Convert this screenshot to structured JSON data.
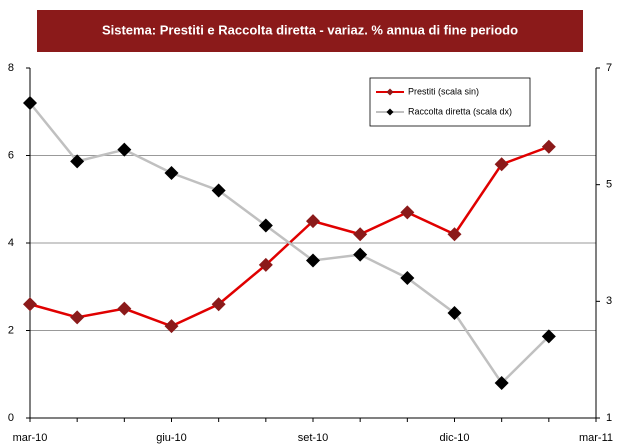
{
  "chart_data": {
    "type": "line",
    "title": "Sistema: Prestiti e Raccolta diretta - variaz. % annua di fine periodo",
    "categories": [
      "mar-10",
      null,
      null,
      "giu-10",
      null,
      null,
      "set-10",
      null,
      null,
      "dic-10",
      null,
      null,
      "mar-11"
    ],
    "series": [
      {
        "name": "Prestiti (scala sin)",
        "color": "#e00000",
        "marker_color": "#8b1a1a",
        "axis": "y",
        "values": [
          2.6,
          2.3,
          2.5,
          2.1,
          2.6,
          3.5,
          4.5,
          4.2,
          4.7,
          4.2,
          5.8,
          6.2,
          null
        ]
      },
      {
        "name": "Raccolta diretta (scala dx)",
        "color": "#c0c0c0",
        "marker_color": "#000000",
        "axis": "y2",
        "values": [
          6.4,
          5.4,
          5.6,
          5.2,
          4.9,
          4.3,
          3.7,
          3.8,
          3.4,
          2.8,
          1.6,
          2.4,
          null
        ]
      }
    ],
    "ylim": [
      0,
      8
    ],
    "yticks": [
      0,
      2,
      4,
      6,
      8
    ],
    "y2lim": [
      1,
      7
    ],
    "y2ticks": [
      1,
      3,
      5,
      7
    ],
    "grid": true,
    "legend": "upper right"
  }
}
